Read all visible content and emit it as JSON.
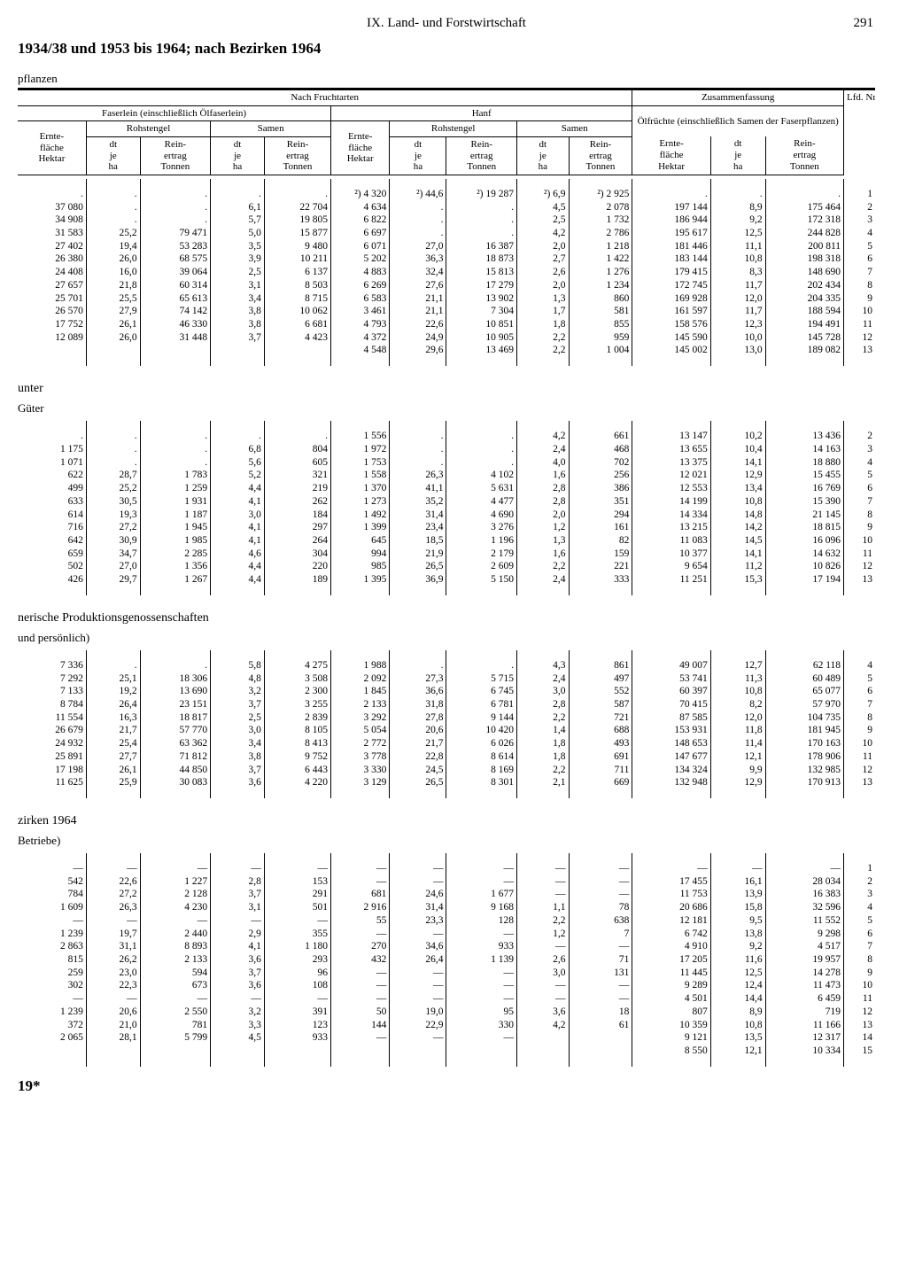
{
  "chapter": "IX. Land- und Forstwirtschaft",
  "pageNumber": "291",
  "subtitle": "1934/38 und 1953 bis 1964; nach Bezirken 1964",
  "topLabel": "pflanzen",
  "footMark": "19*",
  "col_widths_pct": [
    7.0,
    5.5,
    7.2,
    5.5,
    6.8,
    6.0,
    5.8,
    7.2,
    5.3,
    6.5,
    8.0,
    5.6,
    8.0,
    3.2
  ],
  "header": {
    "g1": {
      "nach": "Nach Fruchtarten",
      "zus": "Zusammenfassung"
    },
    "g2": {
      "faser": "Faserlein (einschließlich Ölfaserlein)",
      "hanf": "Hanf",
      "oel": "Ölfrüchte (einschließlich Samen der Faserpflanzen)",
      "lfd": "Lfd. Nr."
    },
    "g3": {
      "roh": "Rohstengel",
      "samen": "Samen"
    },
    "ef": "Ernte-\nfläche\nHektar",
    "cols": {
      "dt": "dt\nje\nha",
      "re": "Rein-\nertrag\nTonnen",
      "ef": "Ernte-\nfläche\nHektar"
    }
  },
  "sections": [
    {
      "title": "",
      "sub": "",
      "idxStart": 1,
      "rows": [
        [
          ".",
          ".",
          ".",
          ".",
          ".",
          "²) 4 320",
          "²) 44,6",
          "²) 19 287",
          "²) 6,9",
          "²) 2 925",
          ".",
          ".",
          ".",
          "1"
        ],
        [
          "37 080",
          ".",
          ".",
          "6,1",
          "22 704",
          "4 634",
          ".",
          ".",
          "4,5",
          "2 078",
          "197 144",
          "8,9",
          "175 464",
          "2"
        ],
        [
          "34 908",
          ".",
          ".",
          "5,7",
          "19 805",
          "6 822",
          ".",
          ".",
          "2,5",
          "1 732",
          "186 944",
          "9,2",
          "172 318",
          "3"
        ],
        [
          "31 583",
          "25,2",
          "79 471",
          "5,0",
          "15 877",
          "6 697",
          ".",
          ".",
          "4,2",
          "2 786",
          "195 617",
          "12,5",
          "244 828",
          "4"
        ],
        [
          "27 402",
          "19,4",
          "53 283",
          "3,5",
          "9 480",
          "6 071",
          "27,0",
          "16 387",
          "2,0",
          "1 218",
          "181 446",
          "11,1",
          "200 811",
          "5"
        ],
        [
          "26 380",
          "26,0",
          "68 575",
          "3,9",
          "10 211",
          "5 202",
          "36,3",
          "18 873",
          "2,7",
          "1 422",
          "183 144",
          "10,8",
          "198 318",
          "6"
        ],
        [
          "24 408",
          "16,0",
          "39 064",
          "2,5",
          "6 137",
          "4 883",
          "32,4",
          "15 813",
          "2,6",
          "1 276",
          "179 415",
          "8,3",
          "148 690",
          "7"
        ],
        [
          "27 657",
          "21,8",
          "60 314",
          "3,1",
          "8 503",
          "6 269",
          "27,6",
          "17 279",
          "2,0",
          "1 234",
          "172 745",
          "11,7",
          "202 434",
          "8"
        ],
        [
          "25 701",
          "25,5",
          "65 613",
          "3,4",
          "8 715",
          "6 583",
          "21,1",
          "13 902",
          "1,3",
          "860",
          "169 928",
          "12,0",
          "204 335",
          "9"
        ],
        [
          "26 570",
          "27,9",
          "74 142",
          "3,8",
          "10 062",
          "3 461",
          "21,1",
          "7 304",
          "1,7",
          "581",
          "161 597",
          "11,7",
          "188 594",
          "10"
        ],
        [
          "17 752",
          "26,1",
          "46 330",
          "3,8",
          "6 681",
          "4 793",
          "22,6",
          "10 851",
          "1,8",
          "855",
          "158 576",
          "12,3",
          "194 491",
          "11"
        ],
        [
          "12 089",
          "26,0",
          "31 448",
          "3,7",
          "4 423",
          "4 372",
          "24,9",
          "10 905",
          "2,2",
          "959",
          "145 590",
          "10,0",
          "145 728",
          "12"
        ],
        [
          "",
          "",
          "",
          "",
          "",
          "4 548",
          "29,6",
          "13 469",
          "2,2",
          "1 004",
          "145 002",
          "13,0",
          "189 082",
          "13"
        ]
      ]
    },
    {
      "title": "unter",
      "sub": "Güter",
      "idxStart": 2,
      "rows": [
        [
          ".",
          ".",
          ".",
          ".",
          ".",
          "1 556",
          ".",
          ".",
          "4,2",
          "661",
          "13 147",
          "10,2",
          "13 436",
          "2"
        ],
        [
          "1 175",
          ".",
          ".",
          "6,8",
          "804",
          "1 972",
          ".",
          ".",
          "2,4",
          "468",
          "13 655",
          "10,4",
          "14 163",
          "3"
        ],
        [
          "1 071",
          ".",
          ".",
          "5,6",
          "605",
          "1 753",
          ".",
          ".",
          "4,0",
          "702",
          "13 375",
          "14,1",
          "18 880",
          "4"
        ],
        [
          "622",
          "28,7",
          "1 783",
          "5,2",
          "321",
          "1 558",
          "26,3",
          "4 102",
          "1,6",
          "256",
          "12 021",
          "12,9",
          "15 455",
          "5"
        ],
        [
          "499",
          "25,2",
          "1 259",
          "4,4",
          "219",
          "1 370",
          "41,1",
          "5 631",
          "2,8",
          "386",
          "12 553",
          "13,4",
          "16 769",
          "6"
        ],
        [
          "633",
          "30,5",
          "1 931",
          "4,1",
          "262",
          "1 273",
          "35,2",
          "4 477",
          "2,8",
          "351",
          "14 199",
          "10,8",
          "15 390",
          "7"
        ],
        [
          "614",
          "19,3",
          "1 187",
          "3,0",
          "184",
          "1 492",
          "31,4",
          "4 690",
          "2,0",
          "294",
          "14 334",
          "14,8",
          "21 145",
          "8"
        ],
        [
          "716",
          "27,2",
          "1 945",
          "4,1",
          "297",
          "1 399",
          "23,4",
          "3 276",
          "1,2",
          "161",
          "13 215",
          "14,2",
          "18 815",
          "9"
        ],
        [
          "642",
          "30,9",
          "1 985",
          "4,1",
          "264",
          "645",
          "18,5",
          "1 196",
          "1,3",
          "82",
          "11 083",
          "14,5",
          "16 096",
          "10"
        ],
        [
          "659",
          "34,7",
          "2 285",
          "4,6",
          "304",
          "994",
          "21,9",
          "2 179",
          "1,6",
          "159",
          "10 377",
          "14,1",
          "14 632",
          "11"
        ],
        [
          "502",
          "27,0",
          "1 356",
          "4,4",
          "220",
          "985",
          "26,5",
          "2 609",
          "2,2",
          "221",
          "9 654",
          "11,2",
          "10 826",
          "12"
        ],
        [
          "426",
          "29,7",
          "1 267",
          "4,4",
          "189",
          "1 395",
          "36,9",
          "5 150",
          "2,4",
          "333",
          "11 251",
          "15,3",
          "17 194",
          "13"
        ]
      ]
    },
    {
      "title": "nerische Produktionsgenossenschaften",
      "sub": "und persönlich)",
      "idxStart": 4,
      "rows": [
        [
          "7 336",
          ".",
          ".",
          "5,8",
          "4 275",
          "1 988",
          ".",
          ".",
          "4,3",
          "861",
          "49 007",
          "12,7",
          "62 118",
          "4"
        ],
        [
          "7 292",
          "25,1",
          "18 306",
          "4,8",
          "3 508",
          "2 092",
          "27,3",
          "5 715",
          "2,4",
          "497",
          "53 741",
          "11,3",
          "60 489",
          "5"
        ],
        [
          "7 133",
          "19,2",
          "13 690",
          "3,2",
          "2 300",
          "1 845",
          "36,6",
          "6 745",
          "3,0",
          "552",
          "60 397",
          "10,8",
          "65 077",
          "6"
        ],
        [
          "8 784",
          "26,4",
          "23 151",
          "3,7",
          "3 255",
          "2 133",
          "31,8",
          "6 781",
          "2,8",
          "587",
          "70 415",
          "8,2",
          "57 970",
          "7"
        ],
        [
          "11 554",
          "16,3",
          "18 817",
          "2,5",
          "2 839",
          "3 292",
          "27,8",
          "9 144",
          "2,2",
          "721",
          "87 585",
          "12,0",
          "104 735",
          "8"
        ],
        [
          "26 679",
          "21,7",
          "57 770",
          "3,0",
          "8 105",
          "5 054",
          "20,6",
          "10 420",
          "1,4",
          "688",
          "153 931",
          "11,8",
          "181 945",
          "9"
        ],
        [
          "24 932",
          "25,4",
          "63 362",
          "3,4",
          "8 413",
          "2 772",
          "21,7",
          "6 026",
          "1,8",
          "493",
          "148 653",
          "11,4",
          "170 163",
          "10"
        ],
        [
          "25 891",
          "27,7",
          "71 812",
          "3,8",
          "9 752",
          "3 778",
          "22,8",
          "8 614",
          "1,8",
          "691",
          "147 677",
          "12,1",
          "178 906",
          "11"
        ],
        [
          "17 198",
          "26,1",
          "44 850",
          "3,7",
          "6 443",
          "3 330",
          "24,5",
          "8 169",
          "2,2",
          "711",
          "134 324",
          "9,9",
          "132 985",
          "12"
        ],
        [
          "11 625",
          "25,9",
          "30 083",
          "3,6",
          "4 220",
          "3 129",
          "26,5",
          "8 301",
          "2,1",
          "669",
          "132 948",
          "12,9",
          "170 913",
          "13"
        ]
      ]
    },
    {
      "title": "zirken 1964",
      "sub": "Betriebe)",
      "idxStart": 1,
      "rows": [
        [
          "—",
          "—",
          "—",
          "—",
          "—",
          "—",
          "—",
          "—",
          "—",
          "—",
          "—",
          "—",
          "—",
          "1"
        ],
        [
          "542",
          "22,6",
          "1 227",
          "2,8",
          "153",
          "—",
          "—",
          "—",
          "—",
          "—",
          "17 455",
          "16,1",
          "28 034",
          "2"
        ],
        [
          "784",
          "27,2",
          "2 128",
          "3,7",
          "291",
          "681",
          "24,6",
          "1 677",
          "—",
          "—",
          "11 753",
          "13,9",
          "16 383",
          "3"
        ],
        [
          "1 609",
          "26,3",
          "4 230",
          "3,1",
          "501",
          "2 916",
          "31,4",
          "9 168",
          "1,1",
          "78",
          "20 686",
          "15,8",
          "32 596",
          "4"
        ],
        [
          "—",
          "—",
          "—",
          "—",
          "—",
          "55",
          "23,3",
          "128",
          "2,2",
          "638",
          "12 181",
          "9,5",
          "11 552",
          "5"
        ],
        [
          "1 239",
          "19,7",
          "2 440",
          "2,9",
          "355",
          "—",
          "—",
          "—",
          "1,2",
          "7",
          "6 742",
          "13,8",
          "9 298",
          "6"
        ],
        [
          "2 863",
          "31,1",
          "8 893",
          "4,1",
          "1 180",
          "270",
          "34,6",
          "933",
          "—",
          "—",
          "4 910",
          "9,2",
          "4 517",
          "7"
        ],
        [
          "815",
          "26,2",
          "2 133",
          "3,6",
          "293",
          "432",
          "26,4",
          "1 139",
          "2,6",
          "71",
          "17 205",
          "11,6",
          "19 957",
          "8"
        ],
        [
          "259",
          "23,0",
          "594",
          "3,7",
          "96",
          "—",
          "—",
          "—",
          "3,0",
          "131",
          "11 445",
          "12,5",
          "14 278",
          "9"
        ],
        [
          "302",
          "22,3",
          "673",
          "3,6",
          "108",
          "—",
          "—",
          "—",
          "—",
          "—",
          "9 289",
          "12,4",
          "11 473",
          "10"
        ],
        [
          "—",
          "—",
          "—",
          "—",
          "—",
          "—",
          "—",
          "—",
          "—",
          "—",
          "4 501",
          "14,4",
          "6 459",
          "11"
        ],
        [
          "1 239",
          "20,6",
          "2 550",
          "3,2",
          "391",
          "50",
          "19,0",
          "95",
          "3,6",
          "18",
          "807",
          "8,9",
          "719",
          "12"
        ],
        [
          "372",
          "21,0",
          "781",
          "3,3",
          "123",
          "144",
          "22,9",
          "330",
          "4,2",
          "61",
          "10 359",
          "10,8",
          "11 166",
          "13"
        ],
        [
          "2 065",
          "28,1",
          "5 799",
          "4,5",
          "933",
          "—",
          "—",
          "—",
          "",
          "",
          "9 121",
          "13,5",
          "12 317",
          "14"
        ],
        [
          "",
          "",
          "",
          "",
          "",
          "",
          "",
          "",
          "",
          "",
          "8 550",
          "12,1",
          "10 334",
          "15"
        ]
      ]
    }
  ]
}
